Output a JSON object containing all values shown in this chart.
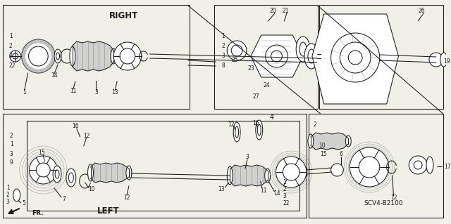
{
  "bg_color": "#f0f0e8",
  "line_color": "#1a1a1a",
  "gray": "#888888",
  "right_label": "RIGHT",
  "left_label": "LEFT",
  "fr_label": "FR.",
  "model_code": "SCV4-B2100",
  "fig_width": 6.4,
  "fig_height": 3.19,
  "dpi": 100
}
